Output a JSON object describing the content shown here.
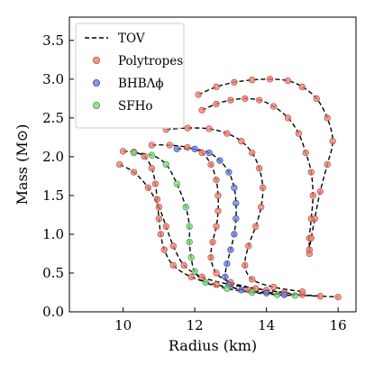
{
  "chart_data": {
    "type": "scatter",
    "xlabel": "Radius (km)",
    "ylabel": "Mass (M⊙)",
    "xlim": [
      8.5,
      16.5
    ],
    "ylim": [
      0.0,
      3.8
    ],
    "xticks": [
      "10",
      "12",
      "14",
      "16"
    ],
    "xtick_values": [
      10,
      12,
      14,
      16
    ],
    "yticks": [
      "0.0",
      "0.5",
      "1.0",
      "1.5",
      "2.0",
      "2.5",
      "3.0",
      "3.5"
    ],
    "ytick_values": [
      0.0,
      0.5,
      1.0,
      1.5,
      2.0,
      2.5,
      3.0,
      3.5
    ],
    "grid": false,
    "legend_position": "top-left",
    "legend": [
      {
        "label": "TOV",
        "kind": "line",
        "color": "#000000"
      },
      {
        "label": "Polytropes",
        "kind": "marker",
        "color": "#f08070"
      },
      {
        "label": "BHBΛϕ",
        "kind": "marker",
        "color": "#6f7fe0"
      },
      {
        "label": "SFHo",
        "kind": "marker",
        "color": "#80d880"
      }
    ],
    "series": [
      {
        "name": "Polytropes",
        "color": "#f08070",
        "curves": [
          [
            [
              9.9,
              1.9
            ],
            [
              10.3,
              1.8
            ],
            [
              10.7,
              1.6
            ],
            [
              11.0,
              1.35
            ],
            [
              11.2,
              1.1
            ],
            [
              11.4,
              0.85
            ],
            [
              11.7,
              0.6
            ],
            [
              12.2,
              0.45
            ],
            [
              13.0,
              0.35
            ],
            [
              14.0,
              0.28
            ],
            [
              15.0,
              0.22
            ],
            [
              16.0,
              0.19
            ]
          ],
          [
            [
              10.0,
              2.07
            ],
            [
              10.3,
              2.06
            ],
            [
              10.6,
              2.0
            ],
            [
              10.8,
              1.85
            ],
            [
              10.9,
              1.65
            ],
            [
              10.95,
              1.45
            ],
            [
              11.0,
              1.2
            ],
            [
              11.05,
              1.0
            ],
            [
              11.15,
              0.8
            ],
            [
              11.4,
              0.6
            ],
            [
              11.9,
              0.45
            ],
            [
              12.6,
              0.35
            ],
            [
              13.5,
              0.28
            ],
            [
              14.5,
              0.23
            ],
            [
              15.5,
              0.2
            ]
          ],
          [
            [
              10.8,
              2.15
            ],
            [
              11.3,
              2.15
            ],
            [
              11.8,
              2.12
            ],
            [
              12.2,
              2.05
            ],
            [
              12.45,
              1.9
            ],
            [
              12.6,
              1.7
            ],
            [
              12.65,
              1.5
            ],
            [
              12.65,
              1.3
            ],
            [
              12.6,
              1.1
            ],
            [
              12.5,
              0.9
            ],
            [
              12.45,
              0.7
            ],
            [
              12.6,
              0.5
            ],
            [
              13.0,
              0.38
            ],
            [
              13.7,
              0.3
            ],
            [
              14.5,
              0.25
            ]
          ],
          [
            [
              11.2,
              2.35
            ],
            [
              11.8,
              2.37
            ],
            [
              12.4,
              2.36
            ],
            [
              12.9,
              2.3
            ],
            [
              13.3,
              2.2
            ],
            [
              13.6,
              2.05
            ],
            [
              13.8,
              1.85
            ],
            [
              13.9,
              1.6
            ],
            [
              13.85,
              1.35
            ],
            [
              13.7,
              1.1
            ],
            [
              13.5,
              0.85
            ],
            [
              13.4,
              0.6
            ],
            [
              13.6,
              0.42
            ],
            [
              14.2,
              0.32
            ],
            [
              15.0,
              0.26
            ]
          ],
          [
            [
              12.2,
              2.6
            ],
            [
              12.6,
              2.68
            ],
            [
              13.0,
              2.73
            ],
            [
              13.4,
              2.75
            ],
            [
              13.8,
              2.73
            ],
            [
              14.2,
              2.65
            ],
            [
              14.6,
              2.5
            ],
            [
              14.9,
              2.3
            ],
            [
              15.1,
              2.05
            ],
            [
              15.25,
              1.8
            ],
            [
              15.3,
              1.5
            ],
            [
              15.25,
              1.2
            ],
            [
              15.2,
              0.95
            ],
            [
              15.2,
              0.75
            ]
          ],
          [
            [
              12.1,
              2.8
            ],
            [
              12.6,
              2.9
            ],
            [
              13.1,
              2.96
            ],
            [
              13.6,
              2.99
            ],
            [
              14.1,
              3.0
            ],
            [
              14.6,
              2.98
            ],
            [
              15.0,
              2.9
            ],
            [
              15.4,
              2.75
            ],
            [
              15.7,
              2.5
            ],
            [
              15.85,
              2.2
            ],
            [
              15.7,
              1.9
            ],
            [
              15.5,
              1.55
            ],
            [
              15.35,
              1.2
            ],
            [
              15.25,
              0.95
            ],
            [
              15.2,
              0.8
            ]
          ]
        ]
      },
      {
        "name": "BHBΛϕ",
        "color": "#6f7fe0",
        "curves": [
          [
            [
              11.5,
              2.1
            ],
            [
              12.0,
              2.1
            ],
            [
              12.4,
              2.05
            ],
            [
              12.7,
              1.95
            ],
            [
              12.95,
              1.8
            ],
            [
              13.1,
              1.6
            ],
            [
              13.15,
              1.4
            ],
            [
              13.15,
              1.2
            ],
            [
              13.1,
              1.0
            ],
            [
              13.0,
              0.8
            ],
            [
              12.9,
              0.62
            ],
            [
              12.85,
              0.45
            ],
            [
              12.95,
              0.35
            ],
            [
              13.3,
              0.28
            ],
            [
              14.0,
              0.24
            ],
            [
              14.5,
              0.22
            ]
          ]
        ]
      },
      {
        "name": "SFHo",
        "color": "#80d880",
        "curves": [
          [
            [
              10.3,
              2.05
            ],
            [
              10.8,
              2.02
            ],
            [
              11.2,
              1.9
            ],
            [
              11.5,
              1.65
            ],
            [
              11.75,
              1.35
            ],
            [
              11.85,
              1.1
            ],
            [
              11.85,
              0.9
            ],
            [
              11.9,
              0.7
            ],
            [
              12.0,
              0.52
            ],
            [
              12.3,
              0.38
            ],
            [
              12.9,
              0.3
            ],
            [
              13.6,
              0.25
            ],
            [
              14.3,
              0.22
            ],
            [
              14.8,
              0.21
            ]
          ]
        ]
      }
    ]
  }
}
